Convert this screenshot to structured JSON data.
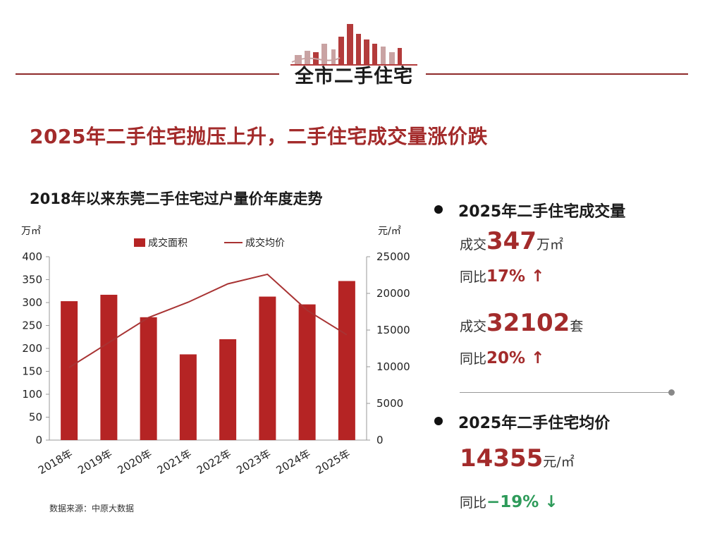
{
  "header": {
    "section_title": "全市二手住宅"
  },
  "headline": "2025年二手住宅抛压上升，二手住宅成交量涨价跌",
  "chart_title": "2018年以来东莞二手住宅过户量价年度走势",
  "source": "数据来源：中原大数据",
  "colors": {
    "accent": "#a32b2b",
    "bar": "#b52424",
    "line": "#a83333",
    "green": "#2e9b5a"
  },
  "stats": {
    "volume_heading": "2025年二手住宅成交量",
    "area_label": "成交",
    "area_value": "347",
    "area_unit": "万㎡",
    "yoy_label": "同比",
    "area_yoy": "17% ↑",
    "units_label": "成交",
    "units_value": "32102",
    "units_unit": "套",
    "units_yoy": "20% ↑",
    "price_heading": "2025年二手住宅均价",
    "price_value": "14355",
    "price_unit": "元/㎡",
    "price_yoy": "−19% ↓"
  },
  "chart_data": {
    "type": "bar",
    "categories": [
      "2018年",
      "2019年",
      "2020年",
      "2021年",
      "2022年",
      "2023年",
      "2024年",
      "2025年"
    ],
    "series": [
      {
        "name": "成交面积",
        "type": "bar",
        "axis": "left",
        "values": [
          303,
          317,
          268,
          187,
          220,
          313,
          296,
          347
        ]
      },
      {
        "name": "成交均价",
        "type": "line",
        "axis": "right",
        "values": [
          9900,
          13300,
          16700,
          18800,
          21300,
          22600,
          17700,
          14355
        ]
      }
    ],
    "y_left": {
      "unit": "万㎡",
      "lim": [
        0,
        400
      ],
      "ticks": [
        0,
        50,
        100,
        150,
        200,
        250,
        300,
        350,
        400
      ]
    },
    "y_right": {
      "unit": "元/㎡",
      "lim": [
        0,
        25000
      ],
      "ticks": [
        0,
        5000,
        10000,
        15000,
        20000,
        25000
      ]
    },
    "legend": "top",
    "grid": false
  }
}
